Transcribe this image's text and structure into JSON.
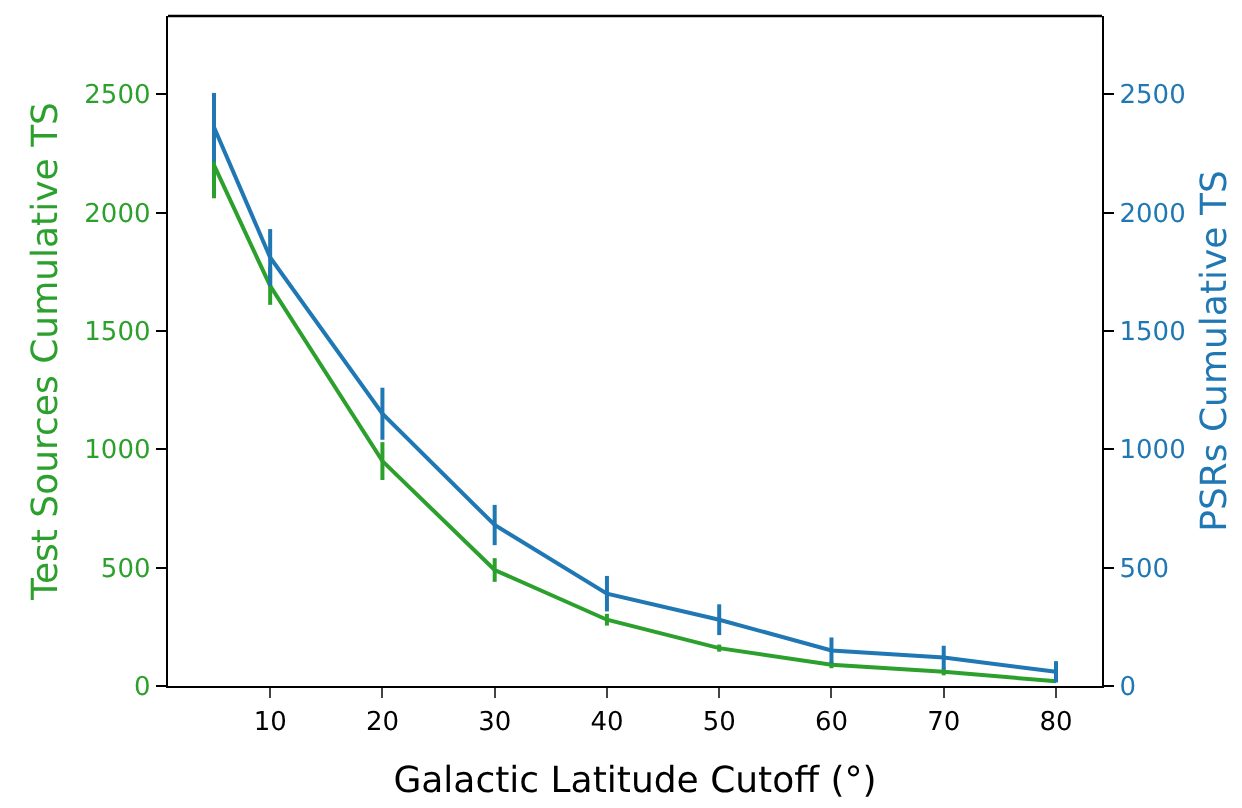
{
  "chart_data": {
    "type": "line",
    "xlabel": "Galactic Latitude Cutoff (°)",
    "ylabel": "Test Sources Cumulative TS",
    "y2label": "PSRs Cumulative TS",
    "x": [
      5,
      10,
      20,
      30,
      40,
      50,
      60,
      70,
      80
    ],
    "xlim": [
      0.9,
      84.1
    ],
    "xticks": [
      10,
      20,
      30,
      40,
      50,
      60,
      70,
      80
    ],
    "ylim": [
      0,
      2830
    ],
    "yticks": [
      0,
      500,
      1000,
      1500,
      2000,
      2500
    ],
    "y2lim": [
      0,
      2830
    ],
    "y2ticks": [
      0,
      500,
      1000,
      1500,
      2000,
      2500
    ],
    "marker": "none",
    "line_style": "solid",
    "series": [
      {
        "color": "#2ca02c",
        "values": [
          2200,
          1690,
          950,
          490,
          280,
          160,
          90,
          60,
          20
        ],
        "errors": [
          140,
          80,
          80,
          50,
          25,
          15,
          15,
          15,
          null
        ]
      },
      {
        "color": "#1f77b4",
        "axis": "y2",
        "values": [
          2360,
          1810,
          1150,
          680,
          390,
          280,
          150,
          120,
          60
        ],
        "errors": [
          145,
          120,
          110,
          85,
          75,
          65,
          55,
          50,
          45
        ]
      }
    ]
  }
}
